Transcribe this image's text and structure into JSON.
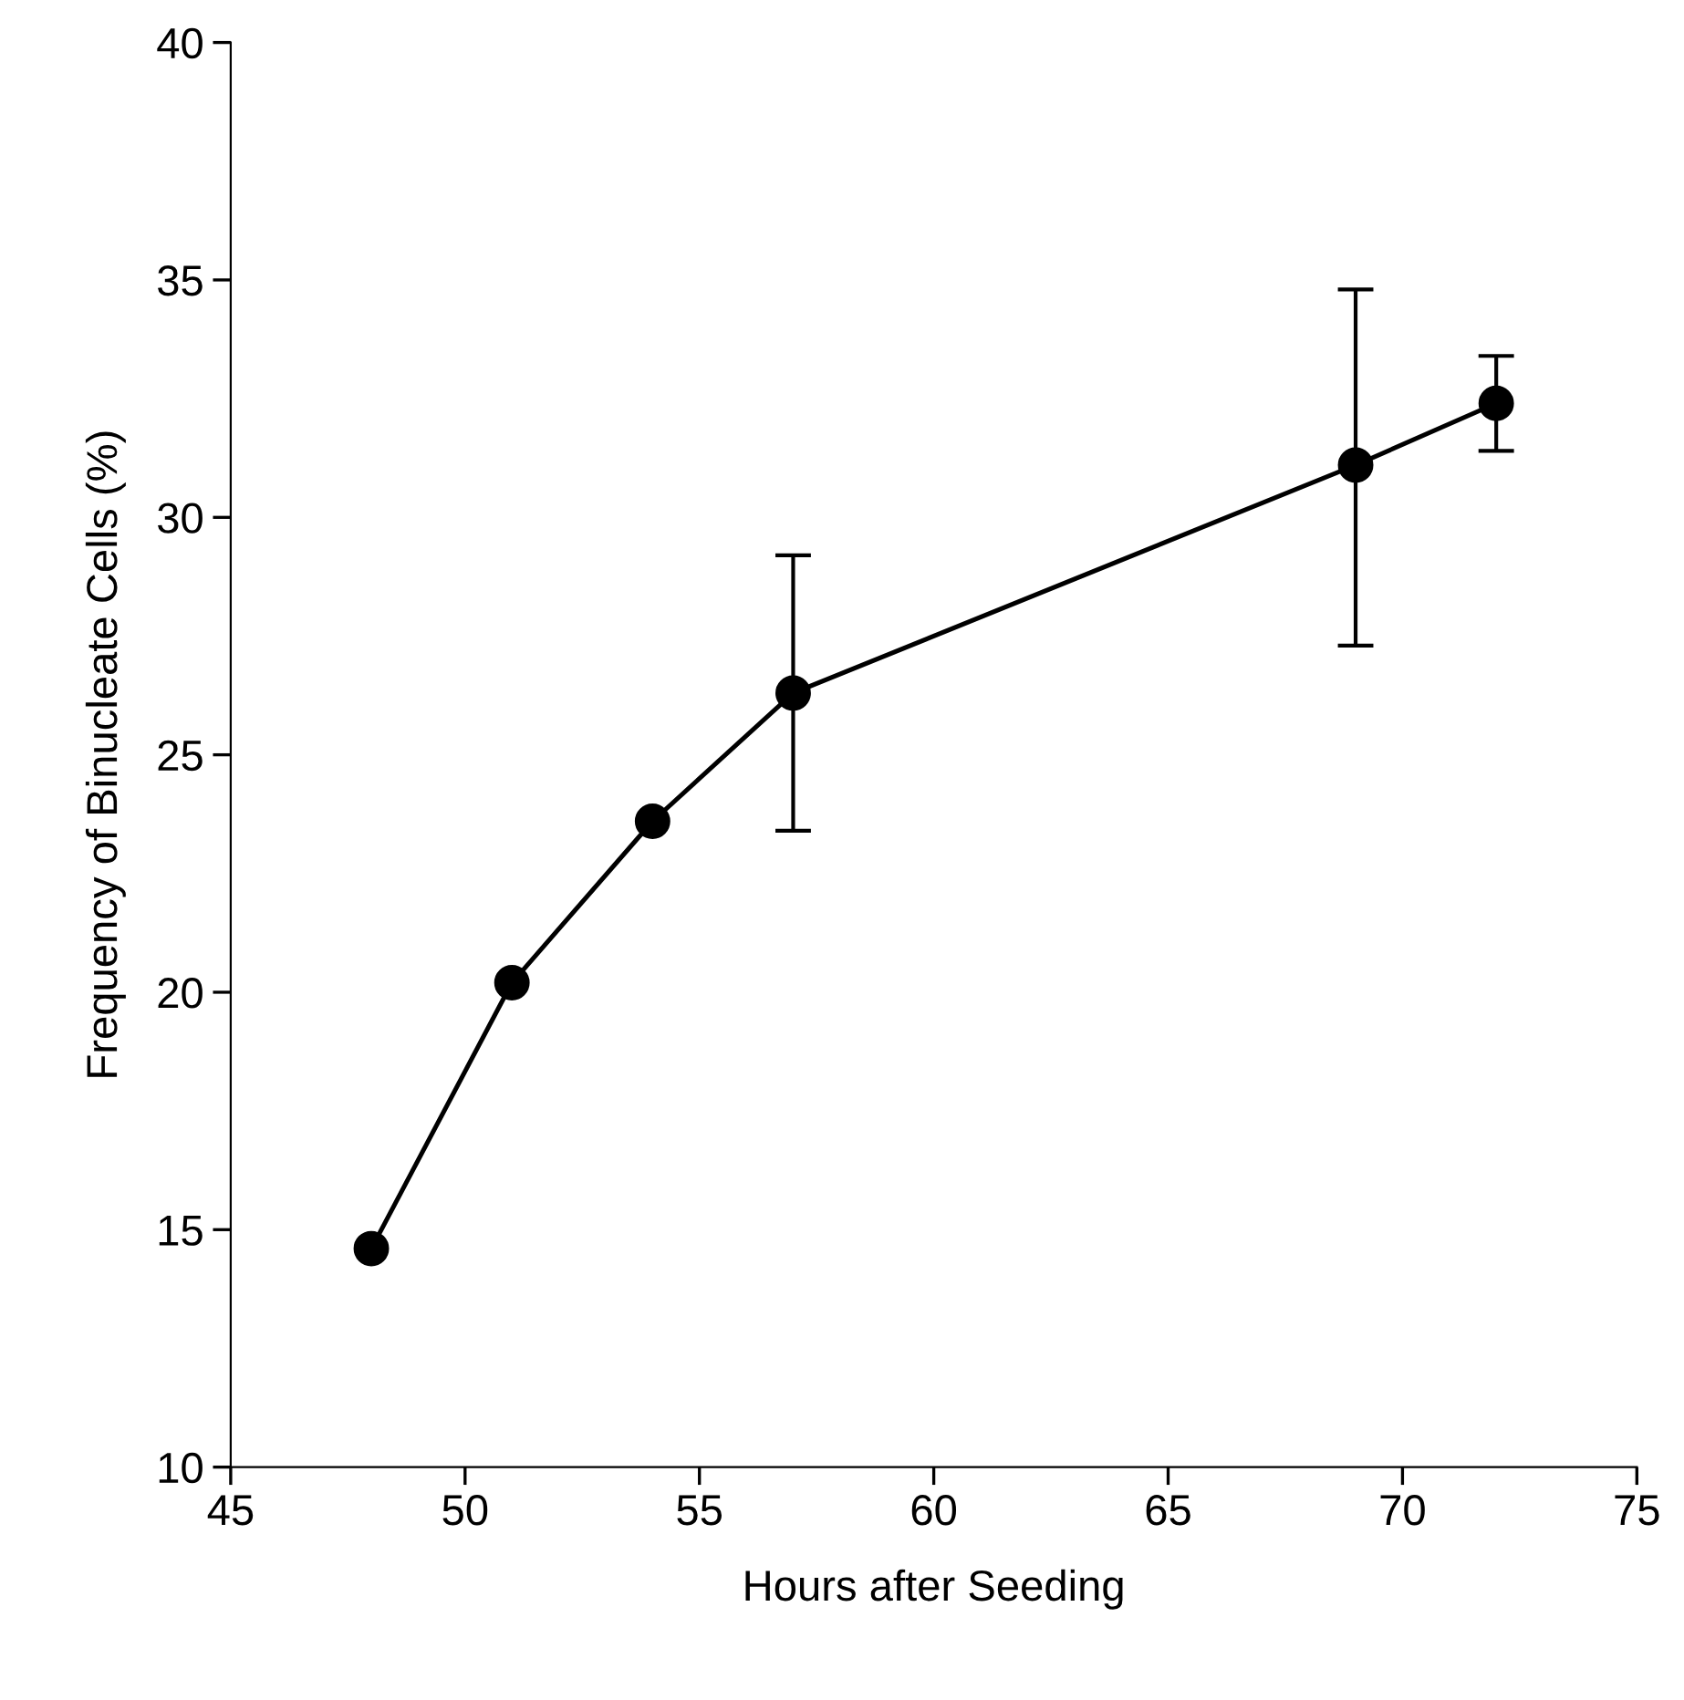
{
  "chart_data": {
    "type": "line",
    "xlabel": "Hours after Seeding",
    "ylabel": "Frequency of Binucleate Cells (%)",
    "x": [
      48,
      51,
      54,
      57,
      69,
      72
    ],
    "values": [
      14.6,
      20.2,
      23.6,
      26.3,
      31.1,
      32.4
    ],
    "errors": [
      null,
      null,
      null,
      [
        23.4,
        29.2
      ],
      [
        27.3,
        34.8
      ],
      [
        31.4,
        33.4
      ]
    ],
    "color": "#000000",
    "marker": "circle",
    "line_style": "solid",
    "grid": false,
    "legend": false,
    "xlim": [
      45,
      75
    ],
    "xticks": [
      45,
      50,
      55,
      60,
      65,
      70,
      75
    ],
    "ylim": [
      10,
      40
    ],
    "yticks": [
      10,
      15,
      20,
      25,
      30,
      35,
      40
    ]
  }
}
